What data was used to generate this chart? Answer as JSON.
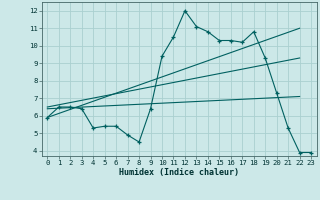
{
  "xlabel": "Humidex (Indice chaleur)",
  "background_color": "#cce8e8",
  "grid_color": "#aad0d0",
  "line_color": "#006060",
  "xlim": [
    -0.5,
    23.5
  ],
  "ylim": [
    3.7,
    12.5
  ],
  "xticks": [
    0,
    1,
    2,
    3,
    4,
    5,
    6,
    7,
    8,
    9,
    10,
    11,
    12,
    13,
    14,
    15,
    16,
    17,
    18,
    19,
    20,
    21,
    22,
    23
  ],
  "yticks": [
    4,
    5,
    6,
    7,
    8,
    9,
    10,
    11,
    12
  ],
  "line1_x": [
    0,
    1,
    2,
    3,
    4,
    5,
    6,
    7,
    8,
    9,
    10,
    11,
    12,
    13,
    14,
    15,
    16,
    17,
    18,
    19,
    20,
    21,
    22,
    23
  ],
  "line1_y": [
    5.9,
    6.5,
    6.5,
    6.4,
    5.3,
    5.4,
    5.4,
    4.9,
    4.5,
    6.4,
    9.4,
    10.5,
    12.0,
    11.1,
    10.8,
    10.3,
    10.3,
    10.2,
    10.8,
    9.3,
    7.3,
    5.3,
    3.9,
    3.9
  ],
  "line2_x": [
    0,
    22
  ],
  "line2_y": [
    5.9,
    11.0
  ],
  "line3_x": [
    0,
    22
  ],
  "line3_y": [
    6.5,
    9.3
  ],
  "line4_x": [
    0,
    22
  ],
  "line4_y": [
    6.4,
    7.1
  ]
}
